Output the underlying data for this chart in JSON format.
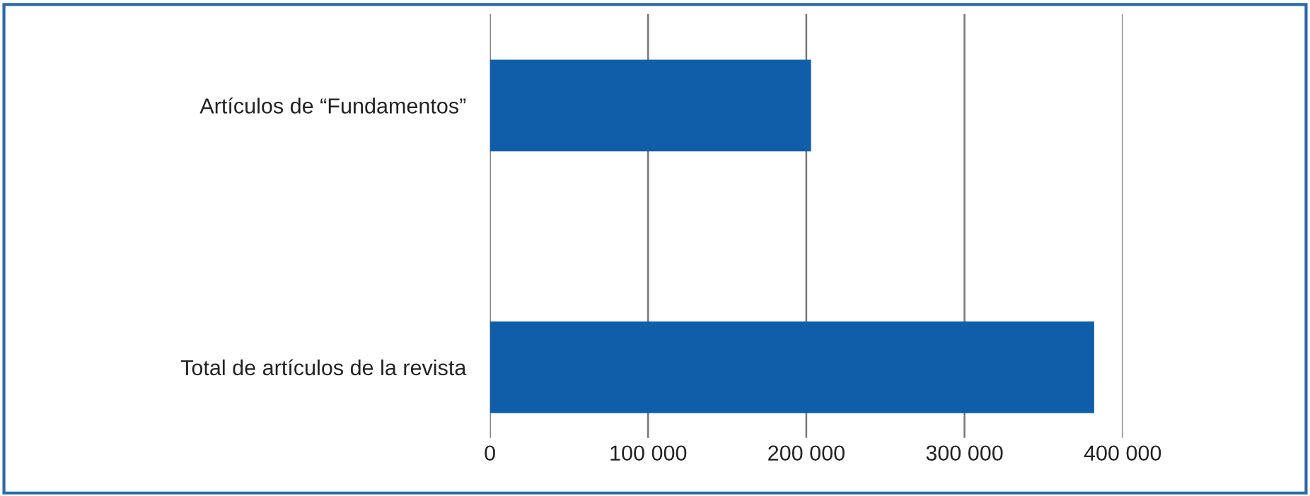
{
  "chart_data": {
    "type": "bar",
    "orientation": "horizontal",
    "categories": [
      "Artículos de “Fundamentos”",
      "Total de artículos de la revista"
    ],
    "values": [
      203000,
      382000
    ],
    "color": "#105ea9",
    "xlim": [
      0,
      400000
    ],
    "xticks": [
      0,
      {
        "value": 100000,
        "label": "100 000"
      },
      {
        "value": 200000,
        "label": "200 000"
      },
      {
        "value": 300000,
        "label": "300 000"
      },
      {
        "value": 400000,
        "label": "400 000"
      }
    ],
    "grid": "x"
  }
}
